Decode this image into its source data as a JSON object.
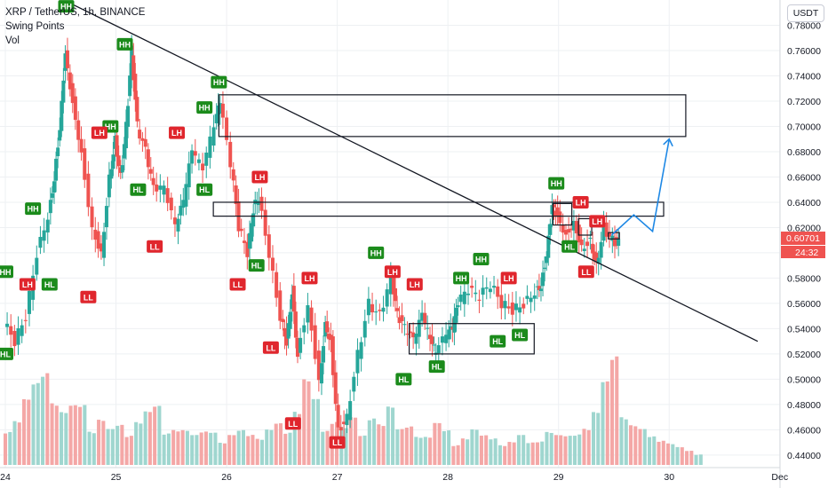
{
  "header": {
    "symbol_line": "XRP / TetherUS, 1h, BINANCE",
    "indicator_1": "Swing Points",
    "indicator_2": "Vol",
    "currency_button": "USDT"
  },
  "price_badges": {
    "last_price": "0.60701",
    "countdown": "24:32"
  },
  "colors": {
    "up": "#26a69a",
    "down": "#ef5350",
    "hh_label": "#1b8b1b",
    "ll_label": "#e0262d",
    "vol_up": "#9fd6cf",
    "vol_down": "#f4a7a6",
    "projection": "#1e88e5",
    "trendline": "#131722"
  },
  "chart_data": {
    "type": "candlestick",
    "symbol": "XRP / TetherUS",
    "timeframe": "1h",
    "exchange": "BINANCE",
    "y_axis": {
      "range": [
        0.435,
        0.8
      ],
      "ticks": [
        "0.44000",
        "0.46000",
        "0.48000",
        "0.50000",
        "0.52000",
        "0.54000",
        "0.56000",
        "0.58000",
        "0.60000",
        "0.62000",
        "0.64000",
        "0.66000",
        "0.68000",
        "0.70000",
        "0.72000",
        "0.74000",
        "0.76000",
        "0.78000"
      ]
    },
    "x_axis": {
      "ticks": [
        "24",
        "25",
        "26",
        "27",
        "28",
        "29",
        "30",
        "Dec"
      ]
    },
    "price_series": [
      [
        24.0,
        0.545
      ],
      [
        24.1,
        0.53
      ],
      [
        24.2,
        0.55
      ],
      [
        24.3,
        0.6
      ],
      [
        24.4,
        0.63
      ],
      [
        24.45,
        0.66
      ],
      [
        24.5,
        0.7
      ],
      [
        24.55,
        0.76
      ],
      [
        24.62,
        0.72
      ],
      [
        24.7,
        0.68
      ],
      [
        24.8,
        0.62
      ],
      [
        24.88,
        0.6
      ],
      [
        24.95,
        0.66
      ],
      [
        25.0,
        0.69
      ],
      [
        25.05,
        0.66
      ],
      [
        25.1,
        0.7
      ],
      [
        25.15,
        0.76
      ],
      [
        25.2,
        0.7
      ],
      [
        25.28,
        0.68
      ],
      [
        25.35,
        0.65
      ],
      [
        25.45,
        0.65
      ],
      [
        25.55,
        0.62
      ],
      [
        25.62,
        0.64
      ],
      [
        25.7,
        0.68
      ],
      [
        25.8,
        0.665
      ],
      [
        25.9,
        0.7
      ],
      [
        25.95,
        0.72
      ],
      [
        26.05,
        0.67
      ],
      [
        26.12,
        0.62
      ],
      [
        26.2,
        0.6
      ],
      [
        26.25,
        0.635
      ],
      [
        26.3,
        0.645
      ],
      [
        26.4,
        0.6
      ],
      [
        26.5,
        0.55
      ],
      [
        26.55,
        0.53
      ],
      [
        26.6,
        0.57
      ],
      [
        26.65,
        0.52
      ],
      [
        26.75,
        0.56
      ],
      [
        26.85,
        0.5
      ],
      [
        26.9,
        0.545
      ],
      [
        26.95,
        0.53
      ],
      [
        27.02,
        0.46
      ],
      [
        27.1,
        0.47
      ],
      [
        27.2,
        0.52
      ],
      [
        27.3,
        0.56
      ],
      [
        27.4,
        0.55
      ],
      [
        27.5,
        0.58
      ],
      [
        27.55,
        0.55
      ],
      [
        27.62,
        0.54
      ],
      [
        27.7,
        0.53
      ],
      [
        27.78,
        0.55
      ],
      [
        27.85,
        0.53
      ],
      [
        27.9,
        0.52
      ],
      [
        28.0,
        0.535
      ],
      [
        28.05,
        0.54
      ],
      [
        28.1,
        0.56
      ],
      [
        28.2,
        0.57
      ],
      [
        28.3,
        0.565
      ],
      [
        28.4,
        0.575
      ],
      [
        28.5,
        0.56
      ],
      [
        28.6,
        0.555
      ],
      [
        28.7,
        0.56
      ],
      [
        28.8,
        0.57
      ],
      [
        28.85,
        0.575
      ],
      [
        28.9,
        0.6
      ],
      [
        28.95,
        0.64
      ],
      [
        29.0,
        0.63
      ],
      [
        29.08,
        0.615
      ],
      [
        29.15,
        0.625
      ],
      [
        29.22,
        0.605
      ],
      [
        29.3,
        0.61
      ],
      [
        29.35,
        0.59
      ],
      [
        29.42,
        0.62
      ],
      [
        29.5,
        0.61
      ],
      [
        29.55,
        0.607
      ]
    ],
    "volume_series": [
      0.35,
      0.4,
      0.55,
      0.7,
      0.9,
      0.6,
      0.45,
      0.5,
      0.55,
      0.35,
      0.4,
      0.3,
      0.35,
      0.3,
      0.4,
      0.45,
      0.5,
      0.3,
      0.35,
      0.3,
      0.25,
      0.3,
      0.35,
      0.2,
      0.25,
      0.3,
      0.3,
      0.25,
      0.3,
      0.35,
      0.3,
      0.55,
      0.75,
      0.55,
      0.3,
      0.45,
      0.35,
      0.4,
      0.25,
      0.45,
      0.4,
      0.5,
      0.3,
      0.35,
      0.3,
      0.25,
      0.35,
      0.3,
      0.2,
      0.25,
      0.3,
      0.25,
      0.25,
      0.2,
      0.2,
      0.25,
      0.2,
      0.25,
      0.3,
      0.25,
      0.25,
      0.3,
      0.35,
      0.45,
      0.7,
      1.0,
      0.5,
      0.35,
      0.3,
      0.25,
      0.25,
      0.2,
      0.15,
      0.12,
      0.1
    ],
    "swing_labels": [
      {
        "x": 24.55,
        "y": 0.795,
        "text": "HH",
        "kind": "high"
      },
      {
        "x": 25.08,
        "y": 0.765,
        "text": "HH",
        "kind": "high"
      },
      {
        "x": 25.93,
        "y": 0.735,
        "text": "HH",
        "kind": "high"
      },
      {
        "x": 24.0,
        "y": 0.585,
        "text": "HH",
        "kind": "high"
      },
      {
        "x": 24.25,
        "y": 0.635,
        "text": "HH",
        "kind": "high"
      },
      {
        "x": 24.95,
        "y": 0.7,
        "text": "HH",
        "kind": "high"
      },
      {
        "x": 25.8,
        "y": 0.715,
        "text": "HH",
        "kind": "high"
      },
      {
        "x": 27.35,
        "y": 0.6,
        "text": "HH",
        "kind": "high"
      },
      {
        "x": 28.12,
        "y": 0.58,
        "text": "HH",
        "kind": "high"
      },
      {
        "x": 28.3,
        "y": 0.595,
        "text": "HH",
        "kind": "high"
      },
      {
        "x": 28.98,
        "y": 0.655,
        "text": "HH",
        "kind": "high"
      },
      {
        "x": 24.2,
        "y": 0.575,
        "text": "LH",
        "kind": "low"
      },
      {
        "x": 24.85,
        "y": 0.695,
        "text": "LH",
        "kind": "low"
      },
      {
        "x": 25.55,
        "y": 0.695,
        "text": "LH",
        "kind": "low"
      },
      {
        "x": 26.3,
        "y": 0.66,
        "text": "LH",
        "kind": "low"
      },
      {
        "x": 26.75,
        "y": 0.58,
        "text": "LH",
        "kind": "low"
      },
      {
        "x": 27.5,
        "y": 0.585,
        "text": "LH",
        "kind": "low"
      },
      {
        "x": 27.7,
        "y": 0.575,
        "text": "LH",
        "kind": "low"
      },
      {
        "x": 28.55,
        "y": 0.58,
        "text": "LH",
        "kind": "low"
      },
      {
        "x": 29.2,
        "y": 0.64,
        "text": "LH",
        "kind": "low"
      },
      {
        "x": 29.35,
        "y": 0.625,
        "text": "LH",
        "kind": "low"
      },
      {
        "x": 24.4,
        "y": 0.575,
        "text": "HL",
        "kind": "high"
      },
      {
        "x": 24.0,
        "y": 0.52,
        "text": "HL",
        "kind": "high"
      },
      {
        "x": 25.2,
        "y": 0.65,
        "text": "HL",
        "kind": "high"
      },
      {
        "x": 25.8,
        "y": 0.65,
        "text": "HL",
        "kind": "high"
      },
      {
        "x": 26.27,
        "y": 0.59,
        "text": "HL",
        "kind": "high"
      },
      {
        "x": 27.6,
        "y": 0.5,
        "text": "HL",
        "kind": "high"
      },
      {
        "x": 27.9,
        "y": 0.51,
        "text": "HL",
        "kind": "high"
      },
      {
        "x": 28.45,
        "y": 0.53,
        "text": "HL",
        "kind": "high"
      },
      {
        "x": 28.65,
        "y": 0.535,
        "text": "HL",
        "kind": "high"
      },
      {
        "x": 29.1,
        "y": 0.605,
        "text": "HL",
        "kind": "high"
      },
      {
        "x": 24.75,
        "y": 0.565,
        "text": "LL",
        "kind": "low"
      },
      {
        "x": 25.35,
        "y": 0.605,
        "text": "LL",
        "kind": "low"
      },
      {
        "x": 26.1,
        "y": 0.575,
        "text": "LL",
        "kind": "low"
      },
      {
        "x": 26.4,
        "y": 0.525,
        "text": "LL",
        "kind": "low"
      },
      {
        "x": 26.6,
        "y": 0.465,
        "text": "LL",
        "kind": "low"
      },
      {
        "x": 27.0,
        "y": 0.45,
        "text": "LL",
        "kind": "low"
      },
      {
        "x": 29.25,
        "y": 0.585,
        "text": "LL",
        "kind": "low"
      }
    ],
    "zones": [
      {
        "x1": 25.93,
        "x2": 30.15,
        "y_top": 0.725,
        "y_bottom": 0.692
      },
      {
        "x1": 25.88,
        "x2": 29.95,
        "y_top": 0.64,
        "y_bottom": 0.629
      },
      {
        "x1": 27.65,
        "x2": 28.78,
        "y_top": 0.544,
        "y_bottom": 0.52
      },
      {
        "x1": 28.95,
        "x2": 29.12,
        "y_top": 0.639,
        "y_bottom": 0.622
      },
      {
        "x1": 29.18,
        "x2": 29.3,
        "y_top": 0.627,
        "y_bottom": 0.614
      },
      {
        "x1": 29.45,
        "x2": 29.55,
        "y_top": 0.616,
        "y_bottom": 0.611
      }
    ],
    "trendline": [
      [
        24.55,
        0.799
      ],
      [
        30.8,
        0.53
      ]
    ],
    "projection": [
      [
        29.48,
        0.614
      ],
      [
        29.68,
        0.63
      ],
      [
        29.85,
        0.617
      ],
      [
        30.0,
        0.69
      ]
    ],
    "grid": true,
    "legend": "none"
  }
}
